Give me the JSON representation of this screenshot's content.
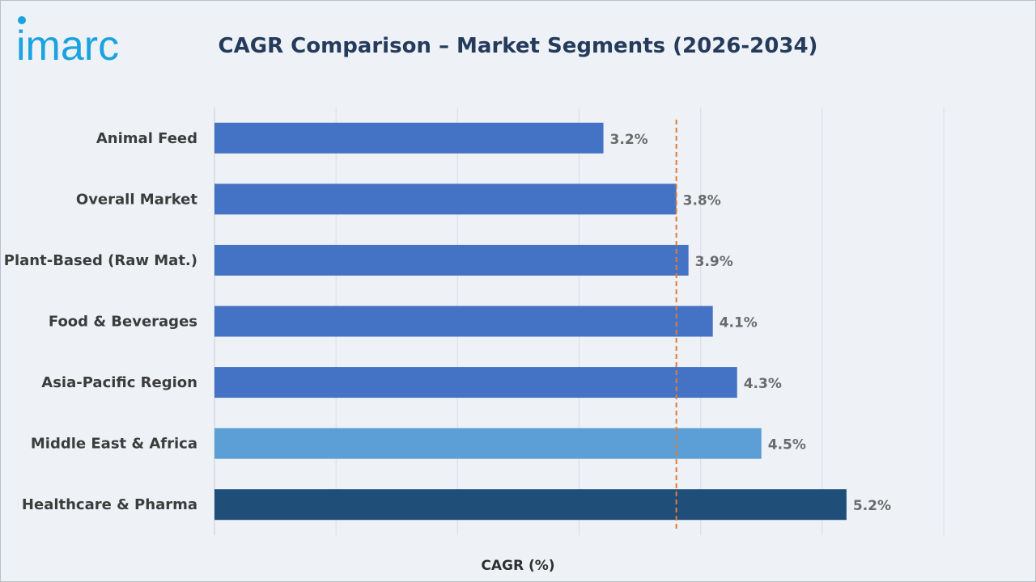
{
  "brand": {
    "logo_text": "imarc",
    "accent": "#1aa3e0"
  },
  "chart_data": {
    "type": "bar",
    "orientation": "horizontal",
    "title": "CAGR Comparison – Market Segments (2026-2034)",
    "xlabel": "CAGR (%)",
    "ylabel": "",
    "categories": [
      "Animal Feed",
      "Overall Market",
      "Plant-Based (Raw Mat.)",
      "Food & Beverages",
      "Asia-Pacific Region",
      "Middle East & Africa",
      "Healthcare & Pharma"
    ],
    "values": [
      3.2,
      3.8,
      3.9,
      4.1,
      4.3,
      4.5,
      5.2
    ],
    "value_labels": [
      "3.2%",
      "3.8%",
      "3.9%",
      "4.1%",
      "4.3%",
      "4.5%",
      "5.2%"
    ],
    "bar_colors": [
      "#4472c4",
      "#4472c4",
      "#4472c4",
      "#4472c4",
      "#4472c4",
      "#5b9fd6",
      "#1f4e79"
    ],
    "reference_line": {
      "value": 3.8,
      "style": "dashed",
      "color": "#e07b39"
    },
    "xlim": [
      0,
      6
    ],
    "grid": true,
    "x_tick_labels_shown": false
  }
}
